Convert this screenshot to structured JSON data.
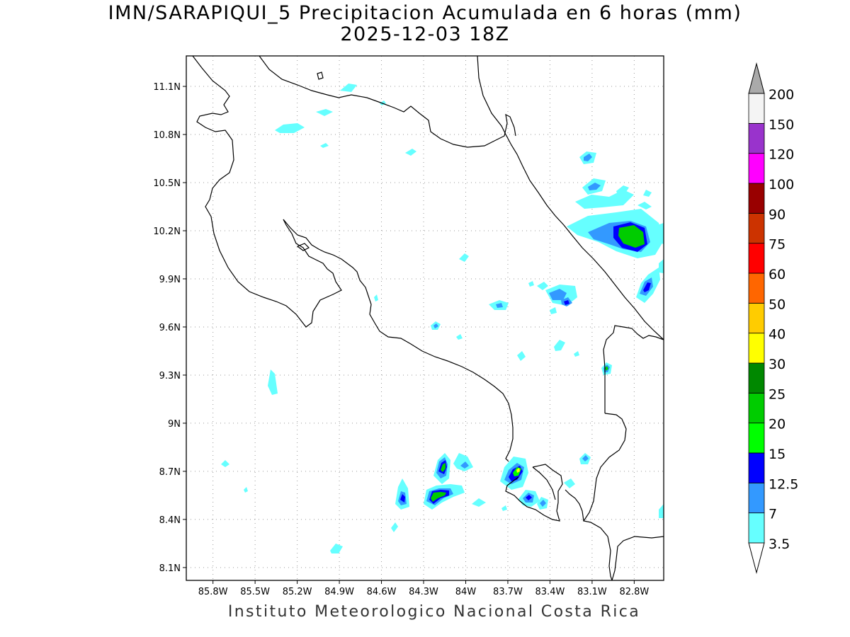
{
  "title": {
    "line1": "IMN/SARAPIQUI_5 Precipitacion Acumulada en 6 horas (mm)",
    "line2": "2025-12-03 18Z"
  },
  "footer": "Instituto Meteorologico Nacional Costa Rica",
  "map": {
    "lon_ticks": [
      "85.8W",
      "85.5W",
      "85.2W",
      "84.9W",
      "84.6W",
      "84.3W",
      "84W",
      "83.7W",
      "83.4W",
      "83.1W",
      "82.8W"
    ],
    "lat_ticks": [
      "11.1N",
      "10.8N",
      "10.5N",
      "10.2N",
      "9.9N",
      "9.6N",
      "9.3N",
      "9N",
      "8.7N",
      "8.4N",
      "8.1N"
    ],
    "lon_range": [
      -85.99,
      -82.59
    ],
    "lat_range": [
      8.02,
      11.29
    ],
    "grid": "dotted",
    "colors": {
      "coastline": "#000000",
      "grid": "#999999"
    }
  },
  "legend": {
    "labels": [
      "3.5",
      "7",
      "12.5",
      "15",
      "20",
      "25",
      "30",
      "40",
      "50",
      "60",
      "75",
      "90",
      "100",
      "120",
      "150",
      "200"
    ],
    "colors": [
      "#66ffff",
      "#3399ff",
      "#0000ff",
      "#00ff00",
      "#00cc00",
      "#008800",
      "#ffff00",
      "#ffcc00",
      "#ff6600",
      "#ff0000",
      "#cc3300",
      "#990000",
      "#ff00ff",
      "#9933cc",
      "#f4f4f4",
      "#aaaaaa"
    ],
    "placement": "right"
  }
}
